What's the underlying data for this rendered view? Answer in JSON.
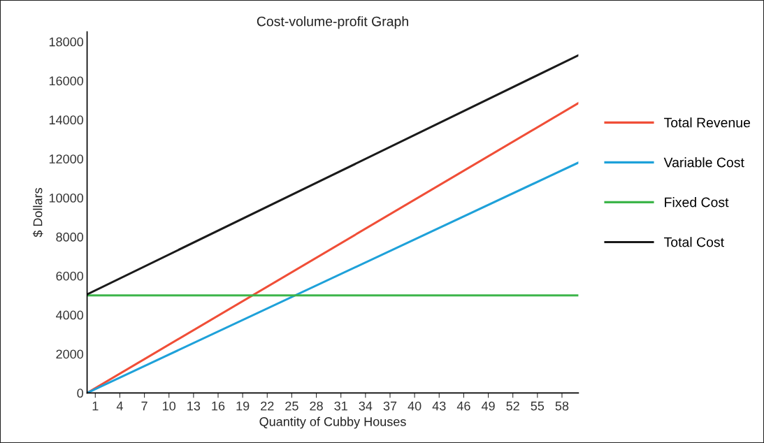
{
  "chart_data": {
    "type": "line",
    "title": "Cost-volume-profit Graph",
    "xlabel": "Quantity of Cubby Houses",
    "ylabel": "$ Dollars",
    "x": [
      0,
      60
    ],
    "series": [
      {
        "name": "Total Revenue",
        "color": "#f04e37",
        "values": [
          0,
          14850
        ]
      },
      {
        "name": "Variable Cost",
        "color": "#1ea1d9",
        "values": [
          0,
          11800
        ]
      },
      {
        "name": "Fixed Cost",
        "color": "#3db54a",
        "values": [
          5000,
          5000
        ]
      },
      {
        "name": "Total Cost",
        "color": "#1a1a1a",
        "values": [
          5050,
          17300
        ]
      }
    ],
    "xlim": [
      0,
      60
    ],
    "xticks": [
      1,
      4,
      7,
      10,
      13,
      16,
      19,
      22,
      25,
      28,
      31,
      34,
      37,
      40,
      43,
      46,
      49,
      52,
      55,
      58
    ],
    "ylim": [
      0,
      18500
    ],
    "yticks": [
      0,
      2000,
      4000,
      6000,
      8000,
      10000,
      12000,
      14000,
      16000,
      18000
    ],
    "grid": false,
    "legend": "right",
    "marker": "none",
    "line_style": "solid"
  }
}
